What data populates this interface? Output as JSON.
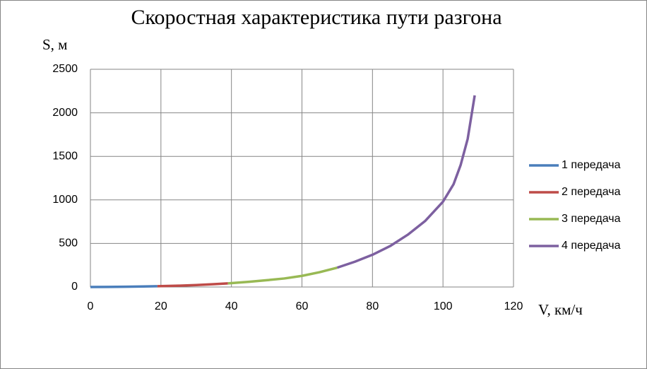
{
  "chart_data": {
    "type": "line",
    "title": "Скоростная характеристика пути разгона",
    "y_label": "S, м",
    "x_label": "V, км/ч",
    "xlim": [
      0,
      120
    ],
    "xticks": [
      0,
      20,
      40,
      60,
      80,
      100,
      120
    ],
    "ylim": [
      0,
      2500
    ],
    "yticks": [
      0,
      500,
      1000,
      1500,
      2000,
      2500
    ],
    "grid": true,
    "legend": "right",
    "series": [
      {
        "name": "1 передача",
        "color": "#4a7ebb",
        "x": [
          0,
          5,
          10,
          15,
          19
        ],
        "values": [
          0,
          1,
          3,
          6,
          9
        ]
      },
      {
        "name": "2 передача",
        "color": "#be4b48",
        "x": [
          19,
          25,
          30,
          35,
          39
        ],
        "values": [
          9,
          15,
          22,
          32,
          42
        ]
      },
      {
        "name": "3 передача",
        "color": "#98b954",
        "x": [
          39,
          45,
          50,
          55,
          60,
          65,
          70
        ],
        "values": [
          42,
          60,
          78,
          98,
          128,
          170,
          222
        ]
      },
      {
        "name": "4 передача",
        "color": "#7d60a0",
        "x": [
          70,
          75,
          80,
          85,
          90,
          95,
          100,
          103,
          105,
          107,
          108,
          109
        ],
        "values": [
          222,
          290,
          370,
          470,
          600,
          760,
          980,
          1180,
          1400,
          1700,
          1950,
          2200
        ]
      }
    ]
  }
}
